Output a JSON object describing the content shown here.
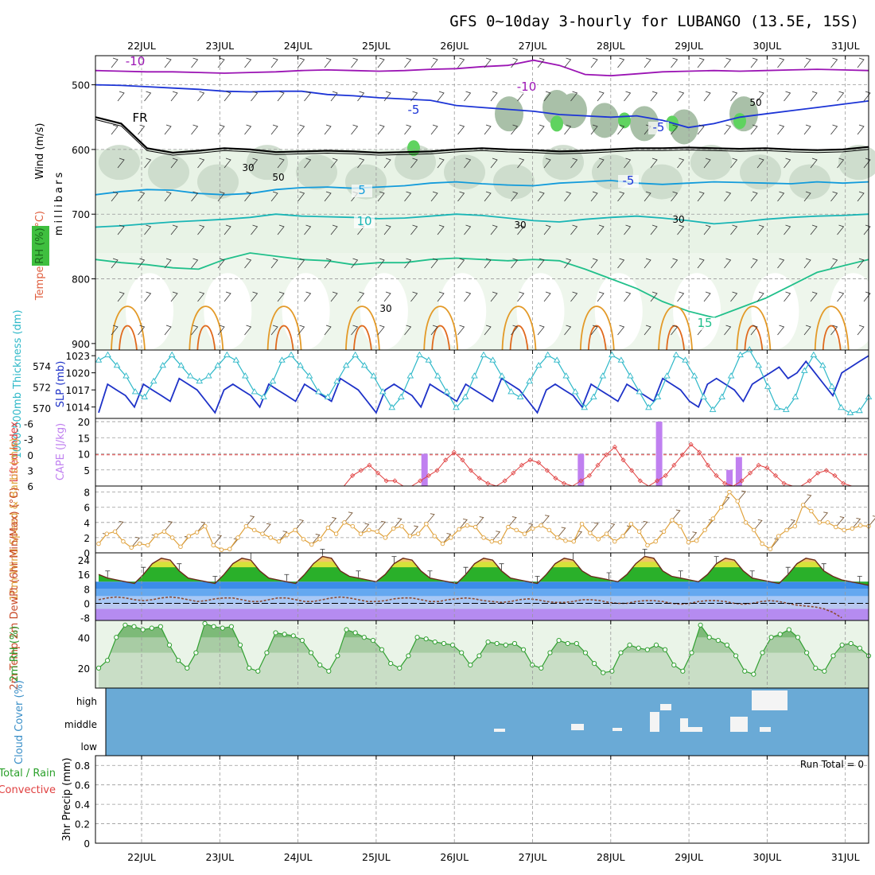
{
  "title": "GFS 0~10day 3-hourly for LUBANGO (13.5E, 15S)",
  "days": [
    "22JUL",
    "23JUL",
    "24JUL",
    "25JUL",
    "26JUL",
    "27JUL",
    "28JUL",
    "29JUL",
    "30JUL",
    "31JUL"
  ],
  "chart_data": [
    {
      "id": "upper_air",
      "type": "contour",
      "ylabel": "millibars",
      "side_labels": [
        "Wind (m/s)",
        "Temperature (°C)",
        "RH (%)"
      ],
      "yticks": [
        500,
        600,
        700,
        800,
        900
      ],
      "ylim": [
        455,
        910
      ],
      "isotherm_labels": [
        "-10",
        "-10",
        "-5",
        "-5",
        "FR",
        "-5",
        "5",
        "10",
        "15"
      ],
      "rh_labels": [
        "30",
        "50",
        "30",
        "30",
        "30",
        "50"
      ],
      "isotherms": [
        {
          "temp": -10,
          "color": "#9b14b4",
          "levels": [
            478,
            479,
            480,
            480,
            481,
            482,
            481,
            480,
            478,
            477,
            478,
            479,
            478,
            476,
            475,
            472,
            470,
            462,
            470,
            484,
            486,
            483,
            480,
            479,
            478,
            479,
            478,
            477,
            476,
            477,
            478
          ]
        },
        {
          "temp": -5,
          "color": "#1c34d6",
          "levels": [
            500,
            501,
            503,
            505,
            507,
            510,
            511,
            510,
            510,
            515,
            517,
            520,
            522,
            524,
            532,
            535,
            538,
            541,
            546,
            548,
            550,
            548,
            555,
            566,
            560,
            550,
            545,
            540,
            535,
            530,
            525
          ]
        },
        {
          "temp": 0,
          "color": "#000000",
          "levels": [
            550,
            560,
            598,
            605,
            602,
            598,
            600,
            604,
            603,
            602,
            603,
            605,
            604,
            603,
            600,
            598,
            600,
            601,
            603,
            602,
            600,
            598,
            598,
            597,
            598,
            599,
            598,
            600,
            601,
            600,
            596
          ]
        },
        {
          "temp": 5,
          "color": "#129bdb",
          "levels": [
            670,
            665,
            662,
            663,
            668,
            670,
            668,
            662,
            659,
            658,
            660,
            658,
            656,
            652,
            650,
            653,
            655,
            656,
            652,
            650,
            648,
            652,
            654,
            652,
            650,
            651,
            652,
            653,
            650,
            652,
            650
          ]
        },
        {
          "temp": 10,
          "color": "#19b5b5",
          "levels": [
            720,
            718,
            715,
            712,
            710,
            708,
            705,
            700,
            703,
            704,
            705,
            707,
            706,
            703,
            700,
            702,
            706,
            710,
            712,
            708,
            705,
            703,
            706,
            710,
            715,
            712,
            708,
            705,
            703,
            702,
            700
          ]
        },
        {
          "temp": 15,
          "color": "#21c08b",
          "levels": [
            770,
            775,
            778,
            783,
            785,
            770,
            760,
            765,
            770,
            772,
            778,
            775,
            775,
            770,
            768,
            770,
            772,
            770,
            772,
            785,
            800,
            815,
            835,
            850,
            860,
            845,
            830,
            810,
            790,
            780,
            770
          ]
        }
      ]
    },
    {
      "id": "slp_thickness",
      "type": "line",
      "left_label": "1000-500mb Thickness (dm)",
      "right_label": "SLP (mb)",
      "thickness_ticks": [
        570,
        572,
        574
      ],
      "slp_ticks": [
        1014,
        1017,
        1020,
        1023
      ],
      "thickness_range": [
        569,
        575.5
      ],
      "slp_range": [
        1012,
        1024
      ],
      "series": [
        {
          "name": "SLP",
          "color": "#1e32c8",
          "axis": "right",
          "values": [
            1013,
            1018,
            1017,
            1016,
            1014,
            1018,
            1017,
            1016,
            1015,
            1019,
            1018,
            1017,
            1015,
            1013,
            1017,
            1018,
            1017,
            1016,
            1014,
            1018,
            1017,
            1016,
            1015,
            1018,
            1017,
            1016,
            1015,
            1019,
            1018,
            1017,
            1015,
            1013,
            1017,
            1018,
            1017,
            1016,
            1014,
            1018,
            1017,
            1016,
            1015,
            1018,
            1017,
            1016,
            1015,
            1019,
            1018,
            1017,
            1015,
            1013,
            1017,
            1018,
            1017,
            1016,
            1014,
            1018,
            1017,
            1016,
            1015,
            1018,
            1017,
            1016,
            1015,
            1019,
            1018,
            1017,
            1015,
            1014,
            1018,
            1019,
            1018,
            1017,
            1015,
            1018,
            1019,
            1020,
            1021,
            1019,
            1020,
            1022,
            1020,
            1018,
            1016,
            1020,
            1021,
            1022,
            1023
          ]
        },
        {
          "name": "Thickness",
          "color": "#2eb8c8",
          "axis": "left",
          "values": [
            574.5,
            575,
            574,
            573,
            571.5,
            571,
            572.5,
            574,
            575,
            574,
            573,
            572.5,
            573,
            574,
            575,
            574.5,
            573,
            571.5,
            571,
            572.5,
            574.5,
            575,
            574,
            573,
            571.5,
            571,
            572.5,
            574,
            575,
            574,
            573,
            571.5,
            570,
            571,
            573,
            575,
            574.5,
            573,
            571.5,
            570,
            571,
            573,
            575,
            574.5,
            573,
            571.5,
            571,
            572.5,
            574,
            575,
            574.5,
            573,
            571.5,
            570,
            571,
            573,
            575,
            574.5,
            573,
            571.5,
            570,
            571,
            573,
            575,
            574.5,
            573,
            571,
            569.8,
            571,
            573,
            575,
            575.5,
            574,
            572,
            570,
            569.8,
            571,
            573.5,
            575,
            574,
            572,
            570,
            569.5,
            569.7,
            571
          ]
        }
      ]
    },
    {
      "id": "cape_li",
      "type": "bar+line",
      "left_label": "Lifted Index",
      "right_label": "CAPE (J/kg)",
      "li_ticks": [
        -6,
        -3,
        0,
        3,
        6
      ],
      "cape_ticks": [
        5,
        10,
        15,
        20
      ],
      "cape_range": [
        0,
        21
      ],
      "li_range": [
        6,
        -7
      ],
      "cape_bars": [
        {
          "day": 3.7,
          "value": 10
        },
        {
          "day": 5.7,
          "value": 10
        },
        {
          "day": 6.7,
          "value": 20
        },
        {
          "day": 7.6,
          "value": 5
        },
        {
          "day": 7.72,
          "value": 9
        }
      ],
      "li_values": [
        7,
        7,
        7,
        7,
        7,
        7,
        7,
        7,
        7,
        7,
        6.8,
        7,
        7,
        7,
        7,
        7,
        7,
        7,
        6.5,
        7,
        7,
        7,
        7,
        7,
        7,
        6.5,
        6,
        7,
        7,
        7,
        4,
        3,
        2,
        3.5,
        5,
        5,
        6,
        6,
        5,
        4,
        3,
        1,
        -0.5,
        1,
        3,
        4.5,
        5.5,
        6,
        5,
        3.5,
        2,
        1,
        1.5,
        3,
        4.5,
        5.5,
        6,
        5,
        4,
        2,
        0,
        -1.5,
        1,
        3,
        5,
        6,
        5,
        4,
        2,
        0,
        -2,
        -0.5,
        2,
        4,
        5.5,
        6,
        5,
        3.5,
        2,
        2.5,
        4,
        5.5,
        6,
        6,
        5,
        3.5,
        3,
        4,
        5.5,
        6,
        6.5,
        7
      ]
    },
    {
      "id": "wind10m",
      "type": "line",
      "left_label": "10m Wind Speed & Barbs (m/s)",
      "yticks": [
        0,
        2,
        4,
        6,
        8
      ],
      "ylim": [
        0,
        8.8
      ],
      "color": "#e0a23c",
      "values": [
        1.2,
        2.5,
        2.8,
        1.5,
        0.7,
        1.2,
        1.0,
        2.3,
        2.8,
        2.0,
        0.8,
        2.2,
        2.7,
        3.5,
        1.0,
        0.4,
        0.5,
        2.0,
        3.5,
        3.0,
        2.5,
        2.0,
        1.5,
        2.4,
        3.0,
        1.8,
        1.1,
        1.8,
        3.3,
        2.5,
        4.0,
        3.5,
        2.5,
        3.0,
        2.8,
        2.0,
        3.2,
        3.5,
        2.2,
        2.5,
        3.8,
        2.2,
        1.2,
        2.0,
        3.1,
        3.6,
        3.4,
        2.0,
        1.5,
        1.4,
        3.4,
        3.0,
        2.5,
        3.2,
        3.6,
        3.0,
        2.0,
        1.6,
        1.5,
        3.8,
        2.6,
        1.8,
        2.5,
        1.5,
        2.2,
        3.8,
        2.8,
        1.0,
        1.5,
        2.8,
        4.3,
        3.5,
        1.4,
        1.6,
        3.0,
        4.5,
        6.0,
        8.0,
        6.8,
        4.0,
        3.0,
        1.2,
        0.5,
        2.2,
        3.0,
        3.5,
        6.3,
        5.5,
        4.0,
        4.0,
        3.4,
        3.0,
        3.2,
        3.6,
        3.5
      ]
    },
    {
      "id": "temp2m",
      "type": "area",
      "left_label": "2m Temp 2m DewPt (6hr Min/Max) (°C)",
      "yticks": [
        -8,
        0,
        8,
        16,
        24
      ],
      "ylim": [
        -9.5,
        28
      ],
      "series": [
        {
          "name": "2m Temp",
          "color": "#000000",
          "values": [
            16,
            14,
            13,
            12,
            11,
            16,
            22,
            25,
            24,
            18,
            14,
            13,
            12,
            11,
            16,
            22,
            25,
            24,
            18,
            14,
            13,
            12,
            11,
            16,
            22,
            26,
            25,
            18,
            15,
            14,
            13,
            12,
            16,
            22,
            25,
            24,
            18,
            14,
            13,
            12,
            11,
            16,
            22,
            25,
            24,
            18,
            14,
            13,
            12,
            11,
            16,
            22,
            25,
            24,
            18,
            15,
            14,
            13,
            12,
            16,
            22,
            26,
            25,
            18,
            15,
            14,
            13,
            12,
            16,
            22,
            25,
            24,
            18,
            14,
            13,
            12,
            11,
            16,
            22,
            25,
            24,
            18,
            15,
            13,
            12,
            11,
            10
          ]
        },
        {
          "name": "2m DewPt",
          "color": "#8a4a32",
          "values": [
            2,
            3,
            3.5,
            3,
            2,
            1.5,
            2,
            3,
            3.5,
            3,
            2,
            1,
            1.5,
            2.5,
            3,
            3,
            2,
            1,
            1,
            2,
            3,
            3,
            2,
            1,
            1,
            2,
            3,
            3.5,
            3,
            2,
            1,
            1,
            1.5,
            2.5,
            3,
            3,
            2,
            1,
            1,
            2,
            2.5,
            3,
            2.5,
            1.5,
            1,
            0.5,
            1,
            2,
            2.5,
            2,
            1,
            0.5,
            0.5,
            1,
            2,
            2,
            1.5,
            0.5,
            0,
            0,
            1,
            1.5,
            1.5,
            1,
            0,
            -0.5,
            0,
            1,
            1.5,
            1.5,
            1,
            0,
            -0.5,
            0,
            1,
            1.5,
            1,
            0,
            -1,
            -1.5,
            -2,
            -3,
            -5,
            -8
          ]
        }
      ]
    },
    {
      "id": "rh2m",
      "type": "area",
      "left_label": "2m RH (%)",
      "yticks": [
        20,
        40
      ],
      "ylim": [
        7,
        51
      ],
      "color": "#32a032",
      "values": [
        20,
        25,
        40,
        48,
        47,
        45,
        46,
        47,
        35,
        25,
        20,
        30,
        49,
        47,
        46,
        47,
        35,
        20,
        18,
        30,
        43,
        42,
        41,
        38,
        30,
        22,
        18,
        28,
        45,
        43,
        40,
        38,
        32,
        23,
        20,
        28,
        40,
        39,
        37,
        36,
        35,
        30,
        22,
        28,
        37,
        36,
        35,
        36,
        32,
        22,
        20,
        30,
        38,
        36,
        36,
        30,
        23,
        17,
        18,
        30,
        35,
        33,
        32,
        35,
        32,
        22,
        18,
        30,
        48,
        40,
        38,
        35,
        28,
        18,
        16,
        30,
        40,
        42,
        45,
        40,
        30,
        20,
        18,
        28,
        35,
        36,
        33,
        28
      ]
    },
    {
      "id": "cloud",
      "type": "bar",
      "left_label": "Cloud Cover (%)",
      "levels": [
        "high",
        "middle",
        "low"
      ]
    },
    {
      "id": "precip",
      "type": "bar",
      "left_label": "Total / Rain Convective",
      "ylabel": "3hr Precip (mm)",
      "yticks": [
        0,
        0.2,
        0.4,
        0.6,
        0.8
      ],
      "ylim": [
        0,
        0.9
      ],
      "run_total": "Run Total = 0"
    }
  ]
}
